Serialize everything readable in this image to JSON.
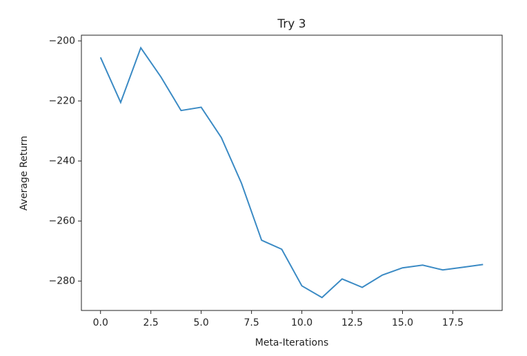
{
  "chart_data": {
    "type": "line",
    "title": "Try 3",
    "x_label": "Meta-Iterations",
    "y_label": "Average Return",
    "x": [
      0,
      1,
      2,
      3,
      4,
      5,
      6,
      7,
      8,
      9,
      10,
      11,
      12,
      13,
      14,
      15,
      16,
      17,
      18,
      19
    ],
    "series": [
      {
        "name": "Average Return",
        "color": "#3a8ac4",
        "values": [
          -205.5,
          -220.5,
          -202.3,
          -212,
          -223.2,
          -222.1,
          -232.2,
          -247.4,
          -266.4,
          -269.4,
          -281.6,
          -285.5,
          -279.3,
          -282.1,
          -278,
          -275.6,
          -274.7,
          -276.3,
          -275.4,
          -274.5
        ]
      }
    ],
    "xlim": [
      -0.95,
      19.95
    ],
    "xticks": [
      {
        "value": 0,
        "label": "0.0"
      },
      2.5,
      {
        "value": 5,
        "label": "5.0"
      },
      7.5,
      {
        "value": 10,
        "label": "10.0"
      },
      12.5,
      {
        "value": 15,
        "label": "15.0"
      },
      17.5
    ],
    "ylim": [
      -289.8,
      -198.1
    ],
    "yticks": [
      {
        "value": -200,
        "label": "−200"
      },
      {
        "value": -220,
        "label": "−220"
      },
      {
        "value": -240,
        "label": "−240"
      },
      {
        "value": -260,
        "label": "−260"
      },
      {
        "value": -280,
        "label": "−280"
      }
    ],
    "grid": false
  }
}
